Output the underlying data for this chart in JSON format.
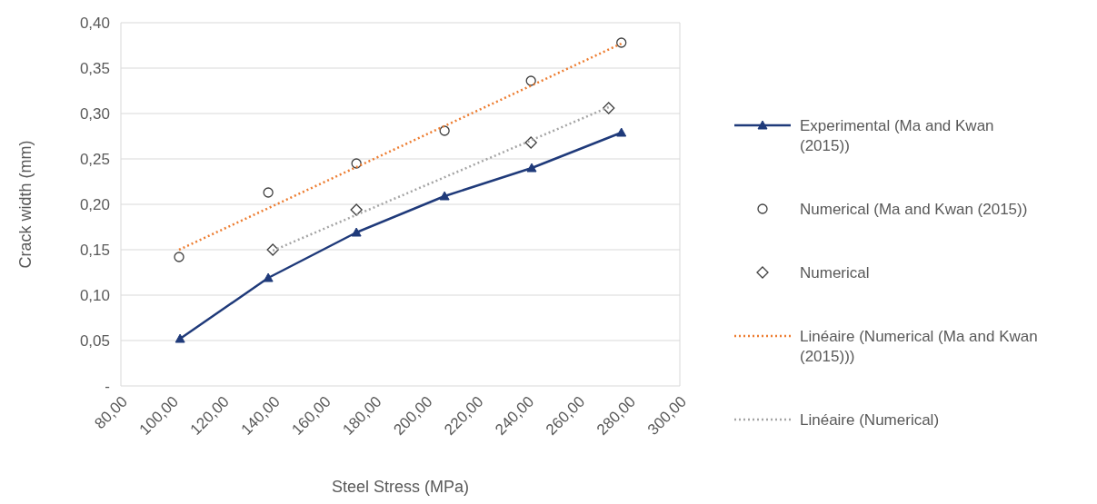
{
  "chart_data": {
    "type": "line",
    "xlabel": "Steel Stress (MPa)",
    "ylabel": "Crack width (mm)",
    "xlim": [
      80,
      300
    ],
    "xticks": [
      {
        "value": 80,
        "label": "80,00"
      },
      {
        "value": 100,
        "label": "100,00"
      },
      {
        "value": 120,
        "label": "120,00"
      },
      {
        "value": 140,
        "label": "140,00"
      },
      {
        "value": 160,
        "label": "160,00"
      },
      {
        "value": 180,
        "label": "180,00"
      },
      {
        "value": 200,
        "label": "200,00"
      },
      {
        "value": 220,
        "label": "220,00"
      },
      {
        "value": 240,
        "label": "240,00"
      },
      {
        "value": 260,
        "label": "260,00"
      },
      {
        "value": 280,
        "label": "280,00"
      },
      {
        "value": 300,
        "label": "300,00"
      }
    ],
    "ylim": [
      0,
      0.4
    ],
    "yticks": [
      {
        "value": 0,
        "label": "-"
      },
      {
        "value": 0.05,
        "label": "0,05"
      },
      {
        "value": 0.1,
        "label": "0,10"
      },
      {
        "value": 0.15,
        "label": "0,15"
      },
      {
        "value": 0.2,
        "label": "0,20"
      },
      {
        "value": 0.25,
        "label": "0,25"
      },
      {
        "value": 0.3,
        "label": "0,30"
      },
      {
        "value": 0.35,
        "label": "0,35"
      },
      {
        "value": 0.4,
        "label": "0,40"
      }
    ],
    "grid": "y",
    "legend": "right",
    "series": [
      {
        "name": "Experimental (Ma and Kwan (2015))",
        "marker": "triangle",
        "line_style": "solid",
        "color": "#1f3a7a",
        "x": [
          103.3,
          138,
          172.7,
          207.4,
          241.7,
          277
        ],
        "values": [
          0.052,
          0.119,
          0.169,
          0.209,
          0.24,
          0.279
        ]
      },
      {
        "name": "Numerical (Ma and Kwan (2015))",
        "type": "scatter",
        "marker": "circle",
        "color": "#404040",
        "x": [
          102.9,
          138,
          172.7,
          207.4,
          241.4,
          277
        ],
        "values": [
          0.142,
          0.213,
          0.245,
          0.281,
          0.336,
          0.378
        ]
      },
      {
        "name": "Numerical",
        "type": "scatter",
        "marker": "diamond",
        "color": "#404040",
        "x": [
          139.8,
          172.7,
          241.4,
          272
        ],
        "values": [
          0.15,
          0.194,
          0.268,
          0.306
        ]
      },
      {
        "name": "Linéaire (Numerical (Ma and Kwan (2015)))",
        "marker": "none",
        "line_style": "dotted",
        "color": "#ed7d31",
        "x": [
          102.9,
          277
        ],
        "values": [
          0.15,
          0.377
        ]
      },
      {
        "name": "Linéaire (Numerical)",
        "marker": "none",
        "line_style": "dotted",
        "color": "#a5a5a5",
        "x": [
          139.8,
          272
        ],
        "values": [
          0.149,
          0.307
        ]
      }
    ]
  }
}
